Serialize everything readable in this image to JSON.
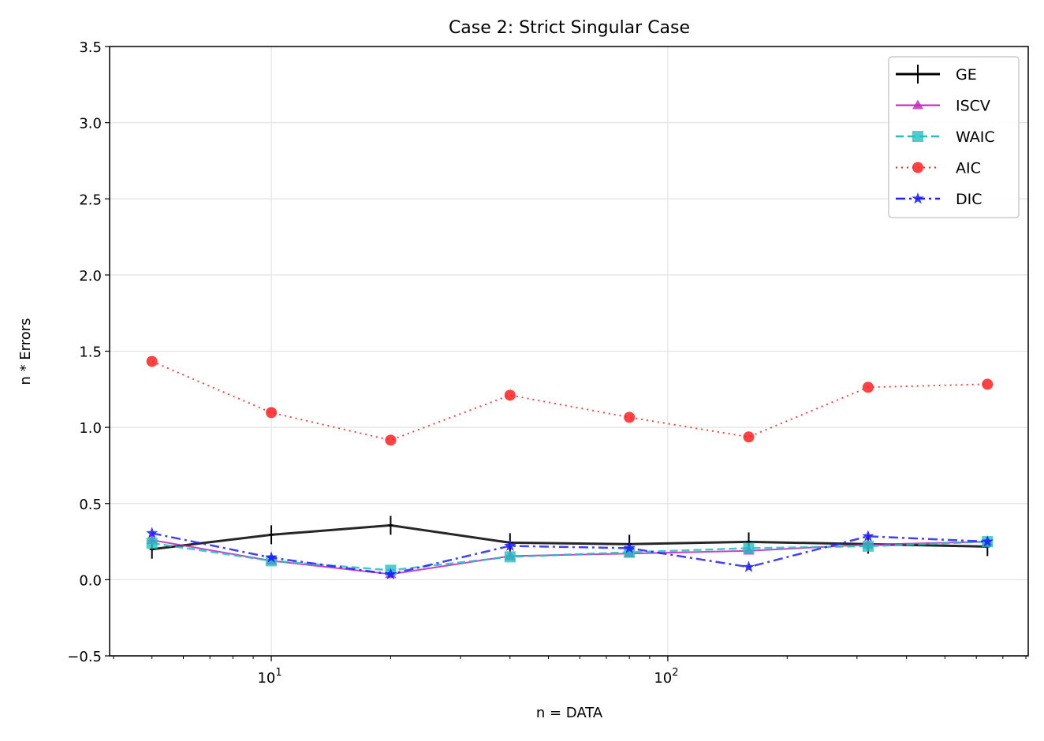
{
  "chart_data": {
    "type": "line",
    "title": "Case 2: Strict Singular Case",
    "xlabel": "n = DATA",
    "ylabel": "n * Errors",
    "xscale": "log",
    "xlim": [
      3.91,
      811
    ],
    "ylim": [
      -0.5,
      3.5
    ],
    "yticks": [
      "−0.5",
      "0.0",
      "0.5",
      "1.0",
      "1.5",
      "2.0",
      "2.5",
      "3.0",
      "3.5"
    ],
    "ytick_values": [
      -0.5,
      0,
      0.5,
      1,
      1.5,
      2,
      2.5,
      3,
      3.5
    ],
    "xtick_labels": [
      {
        "base": "10",
        "exp": "1",
        "value": 10
      },
      {
        "base": "10",
        "exp": "2",
        "value": 100
      }
    ],
    "grid": true,
    "legend_position": "top-right",
    "x": [
      5,
      10,
      20,
      40,
      80,
      160,
      320,
      640
    ],
    "series": [
      {
        "name": "GE",
        "color": "#000000",
        "marker": "plus",
        "dash": "",
        "width": 3,
        "values": [
          0.2,
          0.295,
          0.357,
          0.243,
          0.233,
          0.248,
          0.233,
          0.217
        ]
      },
      {
        "name": "ISCV",
        "color": "#c020c0",
        "marker": "triangle",
        "dash": "",
        "width": 2,
        "values": [
          0.26,
          0.124,
          0.036,
          0.155,
          0.171,
          0.19,
          0.23,
          0.25
        ]
      },
      {
        "name": "WAIC",
        "color": "#20c0c0",
        "marker": "square",
        "dash": "10,5",
        "width": 2.5,
        "values": [
          0.24,
          0.124,
          0.062,
          0.15,
          0.18,
          0.207,
          0.22,
          0.25
        ]
      },
      {
        "name": "AIC",
        "color": "#ff2020",
        "marker": "circle",
        "dash": "2,5",
        "width": 2,
        "values": [
          1.433,
          1.097,
          0.916,
          1.211,
          1.066,
          0.937,
          1.263,
          1.283
        ]
      },
      {
        "name": "DIC",
        "color": "#2020ff",
        "marker": "star",
        "dash": "12,5,3,5",
        "width": 2.5,
        "values": [
          0.305,
          0.145,
          0.036,
          0.222,
          0.207,
          0.083,
          0.285,
          0.25
        ]
      }
    ]
  }
}
